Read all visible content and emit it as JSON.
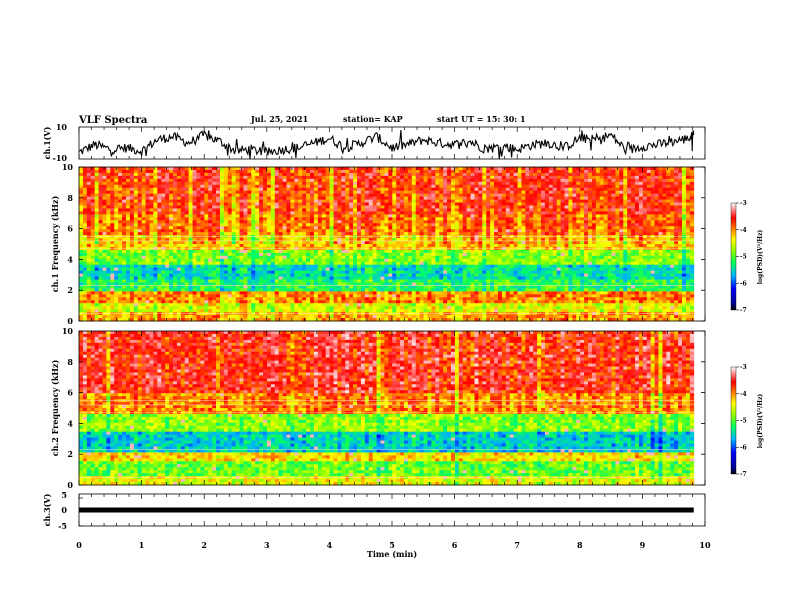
{
  "header": {
    "title": "VLF Spectra",
    "date": "Jul. 25, 2021",
    "station": "station= KAP",
    "start": "start  UT =   15: 30: 1"
  },
  "colors": {
    "spectrum_scale": [
      "#000080",
      "#0000ff",
      "#00c0ff",
      "#00ff80",
      "#80ff00",
      "#ffff00",
      "#ff8000",
      "#ff0000",
      "#ff8080",
      "#ffffff"
    ],
    "trace": "#000000",
    "axis": "#000000"
  },
  "chart_data": [
    {
      "type": "line",
      "name": "ch1-waveform",
      "ylabel": "ch.1(V)",
      "ylim": [
        -10,
        10
      ],
      "yticks": [
        "10",
        "-10"
      ],
      "xlim": [
        0,
        10
      ],
      "x": [
        0,
        0.25,
        0.5,
        0.75,
        1.0,
        1.25,
        1.5,
        1.75,
        2.0,
        2.25,
        2.5,
        2.75,
        3.0,
        3.25,
        3.5,
        3.75,
        4.0,
        4.25,
        4.5,
        4.75,
        5.0,
        5.25,
        5.5,
        5.75,
        6.0,
        6.25,
        6.5,
        6.75,
        7.0,
        7.25,
        7.5,
        7.75,
        8.0,
        8.25,
        8.5,
        8.75,
        9.0,
        9.25,
        9.5,
        9.75,
        9.82
      ],
      "y": [
        -6,
        -1,
        -4,
        -3,
        -5,
        2,
        4,
        0,
        5,
        1,
        -5,
        -4,
        -6,
        -4,
        -3,
        0,
        3,
        -3,
        0,
        4,
        -3,
        -1,
        2,
        0,
        -1,
        1,
        -4,
        -2,
        -4,
        -1,
        0,
        -3,
        3,
        2,
        5,
        -5,
        -2,
        -1,
        1,
        3,
        5
      ]
    },
    {
      "type": "heatmap",
      "name": "ch1-spectrogram",
      "ylabel": "ch.1 Frequency  (kHz)",
      "ylim": [
        0,
        10
      ],
      "yticks": [
        "0",
        "2",
        "4",
        "6",
        "8",
        "10"
      ],
      "xlim": [
        0,
        10
      ],
      "data_end_min": 9.82,
      "colorbar": {
        "label": "log(PSD)(V²/Hz)",
        "range": [
          -7,
          -3
        ],
        "ticks": [
          "-3",
          "-4",
          "-5",
          "-6",
          "-7"
        ]
      },
      "band_log_psd": [
        {
          "freq": [
            0,
            0.5
          ],
          "value": -4.2
        },
        {
          "freq": [
            0.5,
            1.2
          ],
          "value": -4.6
        },
        {
          "freq": [
            1.2,
            2.0
          ],
          "value": -4.1
        },
        {
          "freq": [
            2.0,
            2.6
          ],
          "value": -5.2
        },
        {
          "freq": [
            2.6,
            3.6
          ],
          "value": -5.5
        },
        {
          "freq": [
            3.6,
            4.6
          ],
          "value": -4.9
        },
        {
          "freq": [
            4.6,
            5.6
          ],
          "value": -4.3
        },
        {
          "freq": [
            5.6,
            7.0
          ],
          "value": -4.0
        },
        {
          "freq": [
            7.0,
            10.0
          ],
          "value": -3.8
        }
      ]
    },
    {
      "type": "heatmap",
      "name": "ch2-spectrogram",
      "ylabel": "ch.2 Frequency  (kHz)",
      "ylim": [
        0,
        10
      ],
      "yticks": [
        "0",
        "2",
        "4",
        "6",
        "8",
        "10"
      ],
      "xlim": [
        0,
        10
      ],
      "data_end_min": 9.82,
      "colorbar": {
        "label": "log(PSD)(V²/Hz)",
        "range": [
          -7,
          -3
        ],
        "ticks": [
          "-3",
          "-4",
          "-5",
          "-6",
          "-7"
        ]
      },
      "band_log_psd": [
        {
          "freq": [
            0,
            0.5
          ],
          "value": -4.6
        },
        {
          "freq": [
            0.5,
            1.5
          ],
          "value": -5.0
        },
        {
          "freq": [
            1.5,
            2.2
          ],
          "value": -4.4
        },
        {
          "freq": [
            2.2,
            3.5
          ],
          "value": -5.6
        },
        {
          "freq": [
            3.5,
            4.6
          ],
          "value": -4.9
        },
        {
          "freq": [
            4.6,
            6.0
          ],
          "value": -4.1
        },
        {
          "freq": [
            6.0,
            10.0
          ],
          "value": -3.7
        }
      ]
    },
    {
      "type": "line",
      "name": "ch3-trace",
      "ylabel": "ch.3(V)",
      "ylim": [
        -5,
        5
      ],
      "yticks": [
        "5",
        "0",
        "-5"
      ],
      "xlim": [
        0,
        10
      ],
      "x": [
        0,
        9.82
      ],
      "y": [
        0,
        0
      ],
      "xlabel": "Time  (min)",
      "xticks": [
        "0",
        "1",
        "2",
        "3",
        "4",
        "5",
        "6",
        "7",
        "8",
        "9",
        "10"
      ]
    }
  ]
}
